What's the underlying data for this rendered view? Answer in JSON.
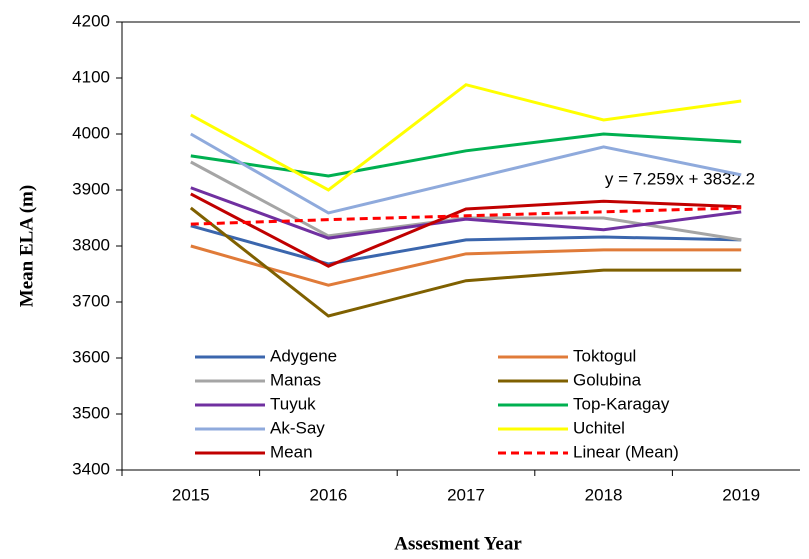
{
  "chart_data": {
    "type": "line",
    "x_label": "Assesment Year",
    "y_label": "Mean ELA (m)",
    "annotation": "y = 7.259x + 3832.2",
    "categories": [
      "2015",
      "2016",
      "2017",
      "2018",
      "2019"
    ],
    "ylim": [
      3400,
      4200
    ],
    "yticks": [
      3400,
      3500,
      3600,
      3700,
      3800,
      3900,
      4000,
      4100,
      4200
    ],
    "grid": false,
    "legend": "lower-left",
    "series": [
      {
        "name": "Adygene",
        "color": "#3b66ad",
        "values": [
          3836,
          3768,
          3811,
          3816,
          3811
        ]
      },
      {
        "name": "Toktogul",
        "color": "#e07b39",
        "values": [
          3800,
          3730,
          3786,
          3793,
          3793
        ]
      },
      {
        "name": "Manas",
        "color": "#a5a5a5",
        "values": [
          3950,
          3818,
          3850,
          3850,
          3811
        ]
      },
      {
        "name": "Golubina",
        "color": "#7f6000",
        "values": [
          3868,
          3675,
          3738,
          3757,
          3757
        ]
      },
      {
        "name": "Tuyuk",
        "color": "#7030a0",
        "values": [
          3904,
          3814,
          3848,
          3829,
          3861
        ]
      },
      {
        "name": "Top-Karagay",
        "color": "#00b050",
        "values": [
          3961,
          3925,
          3970,
          4000,
          3986
        ]
      },
      {
        "name": "Ak-Say",
        "color": "#8faadc",
        "values": [
          4000,
          3859,
          3918,
          3977,
          3927
        ]
      },
      {
        "name": "Uchitel",
        "color": "#ffff00",
        "values": [
          4034,
          3900,
          4088,
          4025,
          4059
        ]
      },
      {
        "name": "Mean",
        "color": "#c00000",
        "values": [
          3893,
          3764,
          3866,
          3880,
          3870
        ]
      },
      {
        "name": "Linear (Mean)",
        "color": "#ff0000",
        "style": "dashed",
        "values": [
          3839,
          3847,
          3854,
          3861,
          3868
        ]
      }
    ]
  }
}
